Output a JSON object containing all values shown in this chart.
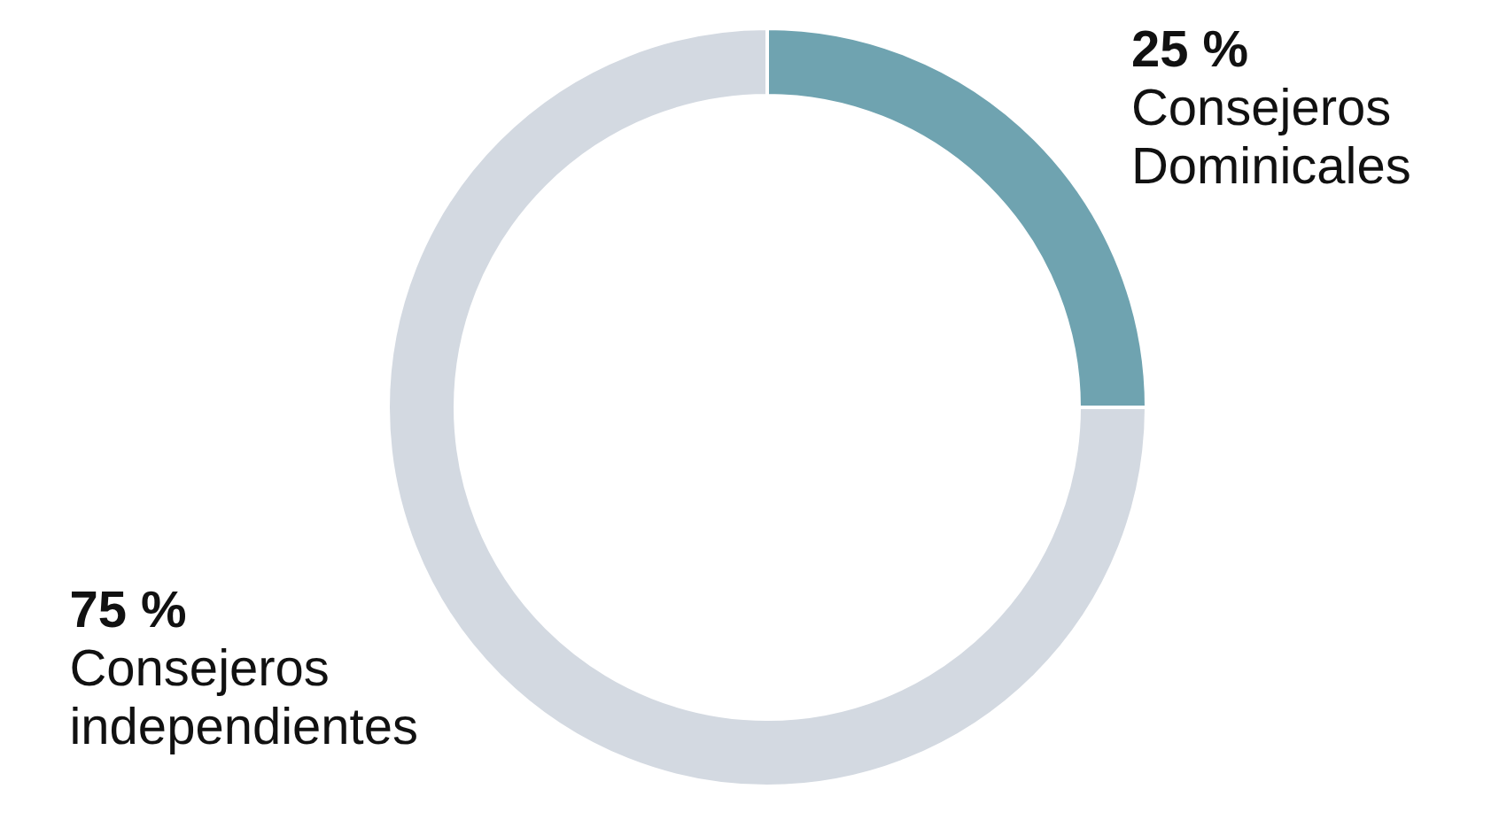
{
  "chart_data": {
    "type": "donut",
    "categories": [
      "Consejeros Dominicales",
      "Consejeros independientes"
    ],
    "values": [
      25,
      75
    ],
    "colors": [
      "#6fa3b0",
      "#d3d9e1"
    ],
    "value_labels": [
      "25 %",
      "75 %"
    ]
  }
}
